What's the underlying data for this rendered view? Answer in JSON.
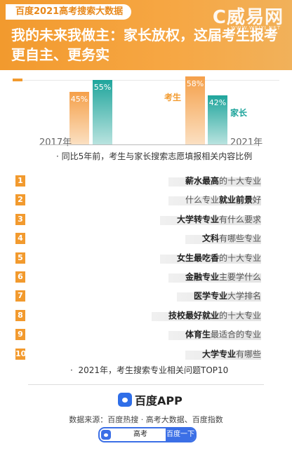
{
  "header": {
    "badge": "百度2021高考搜索大数据",
    "logo": "C威易网",
    "logo_sub": "WWW.WEIYI.NET",
    "title": "我的未来我做主：家长放权，这届考生报考更自主、更务实"
  },
  "colors": {
    "orange": "#f29a2e",
    "teal": "#1fa59c",
    "blue": "#3b6fe6"
  },
  "chart_data": [
    {
      "type": "bar",
      "categories": [
        "2017年",
        "2021年"
      ],
      "series": [
        {
          "name": "考生",
          "values": [
            45,
            58
          ],
          "labels": [
            "45%",
            "58%"
          ]
        },
        {
          "name": "家长",
          "values": [
            55,
            42
          ],
          "labels": [
            "55%",
            "42%"
          ]
        }
      ],
      "ylim": [
        0,
        60
      ],
      "caption": "同比5年前，考生与家长搜索志愿填报相关内容比例"
    },
    {
      "type": "bar",
      "orientation": "horizontal",
      "items": [
        {
          "rank": "1",
          "bold": "薪水最高",
          "rest": "的十大专业"
        },
        {
          "rank": "2",
          "pre": "什么专业",
          "bold": "就业前景",
          "rest": "好"
        },
        {
          "rank": "3",
          "bold": "大学转专业",
          "rest": "有什么要求"
        },
        {
          "rank": "4",
          "bold": "文科",
          "rest": "有哪些专业"
        },
        {
          "rank": "5",
          "bold": "女生最吃香",
          "rest": "的十大专业"
        },
        {
          "rank": "6",
          "bold": "金融专业",
          "rest": "主要学什么"
        },
        {
          "rank": "7",
          "bold": "医学专业",
          "rest": "大学排名"
        },
        {
          "rank": "8",
          "bold": "技校最好就业",
          "rest": "的十大专业"
        },
        {
          "rank": "9",
          "bold": "体育生",
          "rest": "最适合的专业"
        },
        {
          "rank": "10",
          "bold": "大学专业",
          "rest": "有哪些"
        }
      ],
      "caption": "2021年，考生搜索专业相关问题TOP10"
    }
  ],
  "footer": {
    "app_name": "百度APP",
    "source": "数据来源：百度热搜 · 高考大数据、百度指数",
    "search_value": "高考",
    "search_button": "百度一下"
  }
}
